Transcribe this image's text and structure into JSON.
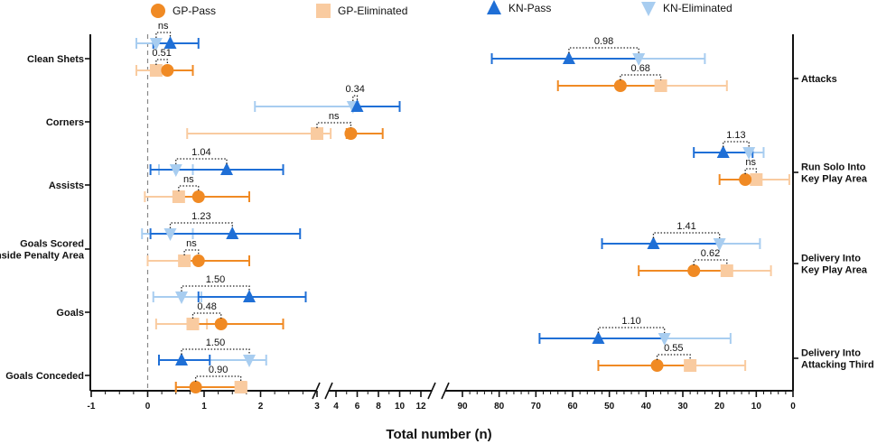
{
  "chart_data": {
    "type": "dot-errorbar",
    "xlabel": "Total number (n)",
    "colors": {
      "gp_pass": "#f08a24",
      "gp_elim": "#f9cba0",
      "kn_pass": "#1f6fd6",
      "kn_elim": "#a8cdf0",
      "bracket": "#222222",
      "axis": "#111111",
      "zero_line": "#888888"
    },
    "legend": [
      {
        "name": "GP-Pass",
        "marker": "circle",
        "color_key": "gp_pass"
      },
      {
        "name": "GP-Eliminated",
        "marker": "square",
        "color_key": "gp_elim"
      },
      {
        "name": "KN-Pass",
        "marker": "triangle-up",
        "color_key": "kn_pass"
      },
      {
        "name": "KN-Eliminated",
        "marker": "triangle-down",
        "color_key": "kn_elim"
      }
    ],
    "left_axis": {
      "segments": [
        {
          "range": [
            -1,
            3
          ],
          "ticks": [
            "-1",
            "0",
            "1",
            "2",
            "3"
          ],
          "tick_values": [
            -1,
            0,
            1,
            2,
            3
          ]
        },
        {
          "range": [
            4,
            12
          ],
          "ticks": [
            "4",
            "6",
            "8",
            "10",
            "12"
          ],
          "tick_values": [
            4,
            6,
            8,
            10,
            12
          ]
        }
      ],
      "categories": [
        "Clean Shets",
        "Corners",
        "Assists",
        "Goals Scored\nInside Penalty Area",
        "Goals",
        "Goals Conceded"
      ],
      "series": {
        "kn_pass": [
          {
            "mean": 0.4,
            "lo": 0.1,
            "hi": 0.9
          },
          {
            "mean": 6.0,
            "lo": 5.8,
            "hi": 10.0
          },
          {
            "mean": 1.4,
            "lo": 0.05,
            "hi": 2.4
          },
          {
            "mean": 1.5,
            "lo": 0.05,
            "hi": 2.7
          },
          {
            "mean": 1.8,
            "lo": 0.9,
            "hi": 2.8
          },
          {
            "mean": 0.6,
            "lo": 0.2,
            "hi": 1.1
          }
        ],
        "kn_elim": [
          {
            "mean": 0.15,
            "lo": -0.2,
            "hi": 0.4
          },
          {
            "mean": 5.6,
            "lo": 1.9,
            "hi": 5.7
          },
          {
            "mean": 0.5,
            "lo": 0.2,
            "hi": 0.8
          },
          {
            "mean": 0.4,
            "lo": -0.1,
            "hi": 0.8
          },
          {
            "mean": 0.6,
            "lo": 0.1,
            "hi": 0.95
          },
          {
            "mean": 1.8,
            "lo": 0.6,
            "hi": 2.1
          }
        ],
        "gp_pass": [
          {
            "mean": 0.35,
            "lo": 0.1,
            "hi": 0.8
          },
          {
            "mean": 5.4,
            "lo": 5.0,
            "hi": 8.4
          },
          {
            "mean": 0.9,
            "lo": 0.6,
            "hi": 1.8
          },
          {
            "mean": 0.9,
            "lo": 0.6,
            "hi": 1.8
          },
          {
            "mean": 1.3,
            "lo": 0.8,
            "hi": 2.4
          },
          {
            "mean": 0.85,
            "lo": 0.5,
            "hi": 1.7
          }
        ],
        "gp_elim": [
          {
            "mean": 0.15,
            "lo": -0.2,
            "hi": 0.35
          },
          {
            "mean": 3.0,
            "lo": 0.7,
            "hi": 3.5
          },
          {
            "mean": 0.55,
            "lo": -0.05,
            "hi": 0.85
          },
          {
            "mean": 0.65,
            "lo": 0.0,
            "hi": 0.95
          },
          {
            "mean": 0.8,
            "lo": 0.15,
            "hi": 1.05
          },
          {
            "mean": 1.65,
            "lo": 0.5,
            "hi": 1.75
          }
        ]
      },
      "annotations": [
        {
          "kn": "ns",
          "gp": "0.51"
        },
        {
          "kn": "0.34",
          "gp": "ns"
        },
        {
          "kn": "1.04",
          "gp": "ns"
        },
        {
          "kn": "1.23",
          "gp": "ns"
        },
        {
          "kn": "1.50",
          "gp": "0.48"
        },
        {
          "kn": "1.50",
          "gp": "0.90"
        }
      ]
    },
    "right_axis": {
      "range": [
        90,
        0
      ],
      "ticks": [
        "90",
        "80",
        "70",
        "60",
        "50",
        "40",
        "30",
        "20",
        "10",
        "0"
      ],
      "tick_values": [
        90,
        80,
        70,
        60,
        50,
        40,
        30,
        20,
        10,
        0
      ],
      "categories": [
        "Attacks",
        "Run Solo Into\nKey Play Area",
        "Delivery Into\nKey Play Area",
        "Delivery Into\nAttacking Third"
      ],
      "series": {
        "kn_pass": [
          {
            "mean": 61,
            "lo": 42,
            "hi": 82
          },
          {
            "mean": 19,
            "lo": 11,
            "hi": 27
          },
          {
            "mean": 38,
            "lo": 20,
            "hi": 52
          },
          {
            "mean": 53,
            "lo": 35,
            "hi": 69
          }
        ],
        "kn_elim": [
          {
            "mean": 42,
            "lo": 24,
            "hi": 61
          },
          {
            "mean": 12,
            "lo": 8,
            "hi": 19
          },
          {
            "mean": 20,
            "lo": 9,
            "hi": 38
          },
          {
            "mean": 35,
            "lo": 17,
            "hi": 53
          }
        ],
        "gp_pass": [
          {
            "mean": 47,
            "lo": 36,
            "hi": 64
          },
          {
            "mean": 13,
            "lo": 10,
            "hi": 20
          },
          {
            "mean": 27,
            "lo": 18,
            "hi": 42
          },
          {
            "mean": 37,
            "lo": 28,
            "hi": 53
          }
        ],
        "gp_elim": [
          {
            "mean": 36,
            "lo": 18,
            "hi": 47
          },
          {
            "mean": 10,
            "lo": 1,
            "hi": 13
          },
          {
            "mean": 18,
            "lo": 6,
            "hi": 27
          },
          {
            "mean": 28,
            "lo": 13,
            "hi": 37
          }
        ]
      },
      "annotations": [
        {
          "kn": "0.98",
          "gp": "0.68"
        },
        {
          "kn": "1.13",
          "gp": "ns"
        },
        {
          "kn": "1.41",
          "gp": "0.62"
        },
        {
          "kn": "1.10",
          "gp": "0.55"
        }
      ]
    }
  }
}
